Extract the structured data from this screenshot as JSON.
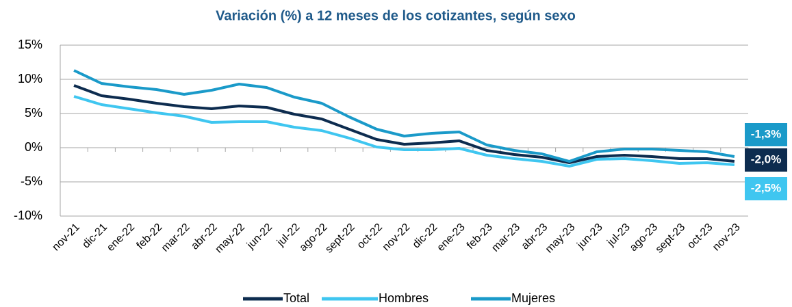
{
  "chart_data": {
    "type": "line",
    "title": "Variación (%) a 12 meses de los cotizantes, según sexo",
    "categories": [
      "nov-21",
      "dic-21",
      "ene-22",
      "feb-22",
      "mar-22",
      "abr-22",
      "may-22",
      "jun-22",
      "jul-22",
      "ago-22",
      "sept-22",
      "oct-22",
      "nov-22",
      "dic-22",
      "ene-23",
      "feb-23",
      "mar-23",
      "abr-23",
      "may-23",
      "jun-23",
      "jul-23",
      "ago-23",
      "sept-23",
      "oct-23",
      "nov-23"
    ],
    "series": [
      {
        "name": "Total",
        "color": "#0d2c4f",
        "values": [
          9.1,
          7.6,
          7.1,
          6.5,
          6.0,
          5.7,
          6.1,
          5.9,
          4.9,
          4.2,
          2.7,
          1.2,
          0.5,
          0.7,
          1.0,
          -0.4,
          -1.0,
          -1.4,
          -2.2,
          -1.3,
          -1.1,
          -1.3,
          -1.6,
          -1.6,
          -2.0
        ],
        "value_labels": [
          null,
          null,
          null,
          null,
          null,
          null,
          null,
          null,
          null,
          null,
          null,
          null,
          null,
          null,
          null,
          null,
          null,
          null,
          null,
          null,
          null,
          null,
          null,
          null,
          "-2,0%"
        ]
      },
      {
        "name": "Hombres",
        "color": "#3fc6f0",
        "values": [
          7.5,
          6.3,
          5.7,
          5.1,
          4.6,
          3.7,
          3.8,
          3.8,
          3.0,
          2.5,
          1.4,
          0.1,
          -0.3,
          -0.3,
          -0.1,
          -1.1,
          -1.6,
          -2.0,
          -2.7,
          -1.7,
          -1.6,
          -1.9,
          -2.3,
          -2.2,
          -2.5
        ],
        "value_labels": [
          null,
          null,
          null,
          null,
          null,
          null,
          null,
          null,
          null,
          null,
          null,
          null,
          null,
          null,
          null,
          null,
          null,
          null,
          null,
          null,
          null,
          null,
          null,
          null,
          "-2,5%"
        ]
      },
      {
        "name": "Mujeres",
        "color": "#1a9ac9",
        "values": [
          11.3,
          9.4,
          8.9,
          8.5,
          7.8,
          8.4,
          9.3,
          8.8,
          7.4,
          6.5,
          4.5,
          2.7,
          1.7,
          2.1,
          2.3,
          0.4,
          -0.4,
          -0.9,
          -2.0,
          -0.6,
          -0.2,
          -0.2,
          -0.4,
          -0.6,
          -1.3
        ],
        "value_labels": [
          null,
          null,
          null,
          null,
          null,
          null,
          null,
          null,
          null,
          null,
          null,
          null,
          null,
          null,
          null,
          null,
          null,
          null,
          null,
          null,
          null,
          null,
          null,
          null,
          "-1,3%"
        ]
      }
    ],
    "ylim": [
      -10,
      15
    ],
    "yticks": [
      {
        "value": -10,
        "label": "-10%"
      },
      {
        "value": -5,
        "label": "-5%"
      },
      {
        "value": 0,
        "label": "0%"
      },
      {
        "value": 5,
        "label": "5%"
      },
      {
        "value": 10,
        "label": "10%"
      },
      {
        "value": 15,
        "label": "15%"
      }
    ],
    "grid": true,
    "legend": "bottom"
  }
}
